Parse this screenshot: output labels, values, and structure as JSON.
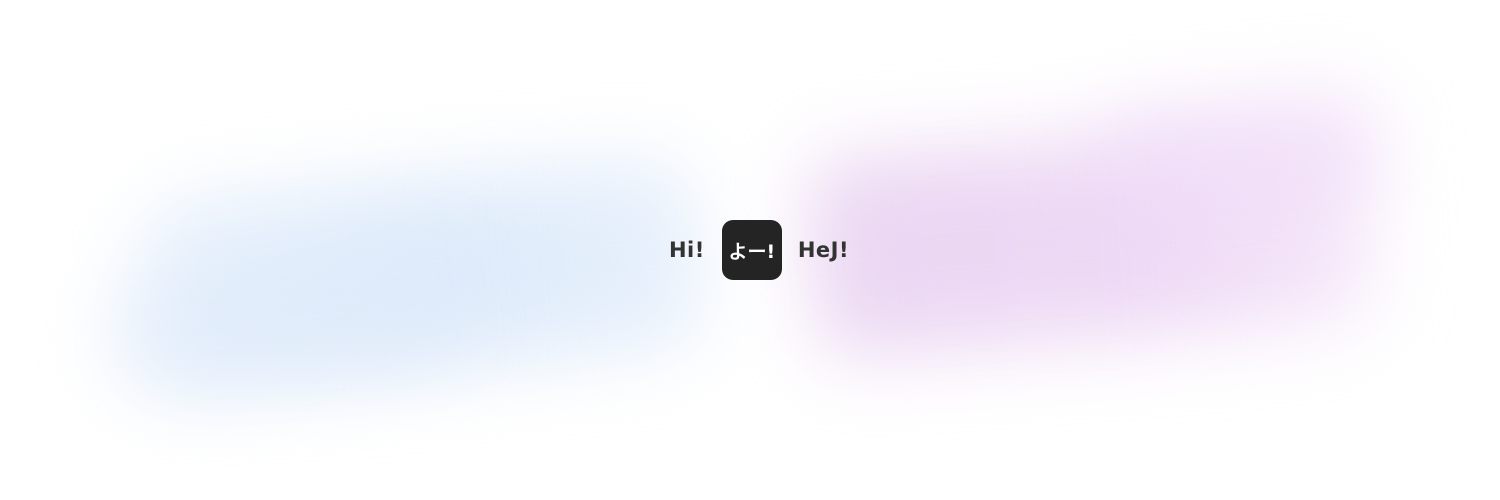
{
  "greetings": {
    "left": "Hi!",
    "center": "よー!",
    "right": "HeJ!"
  },
  "colors": {
    "text": "#333333",
    "badge_background": "#242424",
    "badge_text": "#ffffff",
    "blur_left": "#dae8fa",
    "blur_right": "#ecd4f4"
  }
}
